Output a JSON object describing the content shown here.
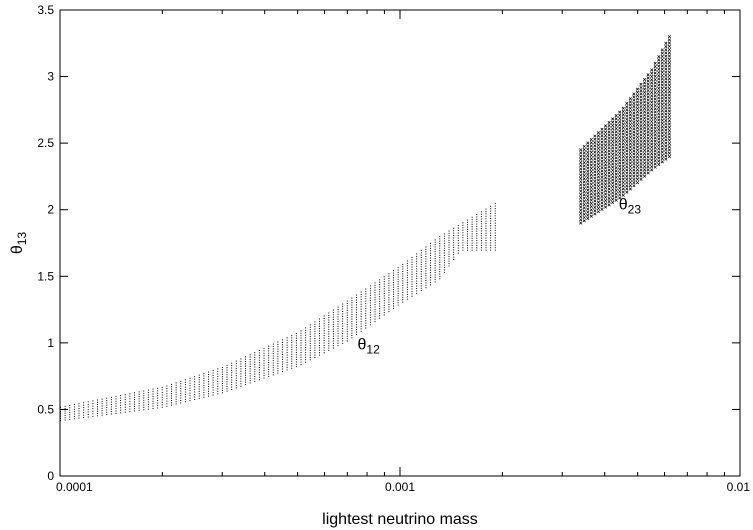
{
  "chart_data": {
    "type": "scatter",
    "title": "",
    "xlabel": "lightest neutrino mass",
    "ylabel_main": "θ",
    "ylabel_sub": "13",
    "xscale": "log",
    "xlim": [
      0.0001,
      0.01
    ],
    "ylim": [
      0,
      3.5
    ],
    "grid": false,
    "legend": "none",
    "color": "#000000",
    "x_ticks": [
      {
        "value": 0.0001,
        "label": "0.0001"
      },
      {
        "value": 0.001,
        "label": "0.001"
      },
      {
        "value": 0.01,
        "label": "0.01"
      }
    ],
    "y_ticks": [
      {
        "value": 0,
        "label": "0"
      },
      {
        "value": 0.5,
        "label": "0.5"
      },
      {
        "value": 1,
        "label": "1"
      },
      {
        "value": 1.5,
        "label": "1.5"
      },
      {
        "value": 2,
        "label": "2"
      },
      {
        "value": 2.5,
        "label": "2.5"
      },
      {
        "value": 3,
        "label": "3"
      },
      {
        "value": 3.5,
        "label": "3.5"
      }
    ],
    "annotations": [
      {
        "main": "θ",
        "sub": "12",
        "x": 0.00075,
        "y": 0.95
      },
      {
        "main": "θ",
        "sub": "23",
        "x": 0.0044,
        "y": 2.0
      }
    ],
    "series": [
      {
        "marker": "dot",
        "x_range": [
          0.0001,
          0.0019
        ],
        "band_lower": [
          [
            0.0001,
            0.42
          ],
          [
            0.0002,
            0.52
          ],
          [
            0.0003,
            0.63
          ],
          [
            0.0005,
            0.83
          ],
          [
            0.0007,
            1.02
          ],
          [
            0.001,
            1.3
          ],
          [
            0.0013,
            1.48
          ],
          [
            0.0015,
            1.7
          ]
        ],
        "band_upper": [
          [
            0.0001,
            0.52
          ],
          [
            0.0002,
            0.67
          ],
          [
            0.0003,
            0.82
          ],
          [
            0.0005,
            1.08
          ],
          [
            0.0007,
            1.32
          ],
          [
            0.001,
            1.58
          ],
          [
            0.0013,
            1.8
          ],
          [
            0.0019,
            2.05
          ]
        ]
      },
      {
        "marker": "x",
        "x_range": [
          0.0034,
          0.0062
        ],
        "band_lower": [
          [
            0.0034,
            1.9
          ],
          [
            0.0045,
            2.1
          ],
          [
            0.0055,
            2.3
          ],
          [
            0.0062,
            2.4
          ]
        ],
        "band_upper": [
          [
            0.0034,
            2.45
          ],
          [
            0.0045,
            2.75
          ],
          [
            0.0055,
            3.05
          ],
          [
            0.0062,
            3.3
          ]
        ]
      }
    ]
  }
}
